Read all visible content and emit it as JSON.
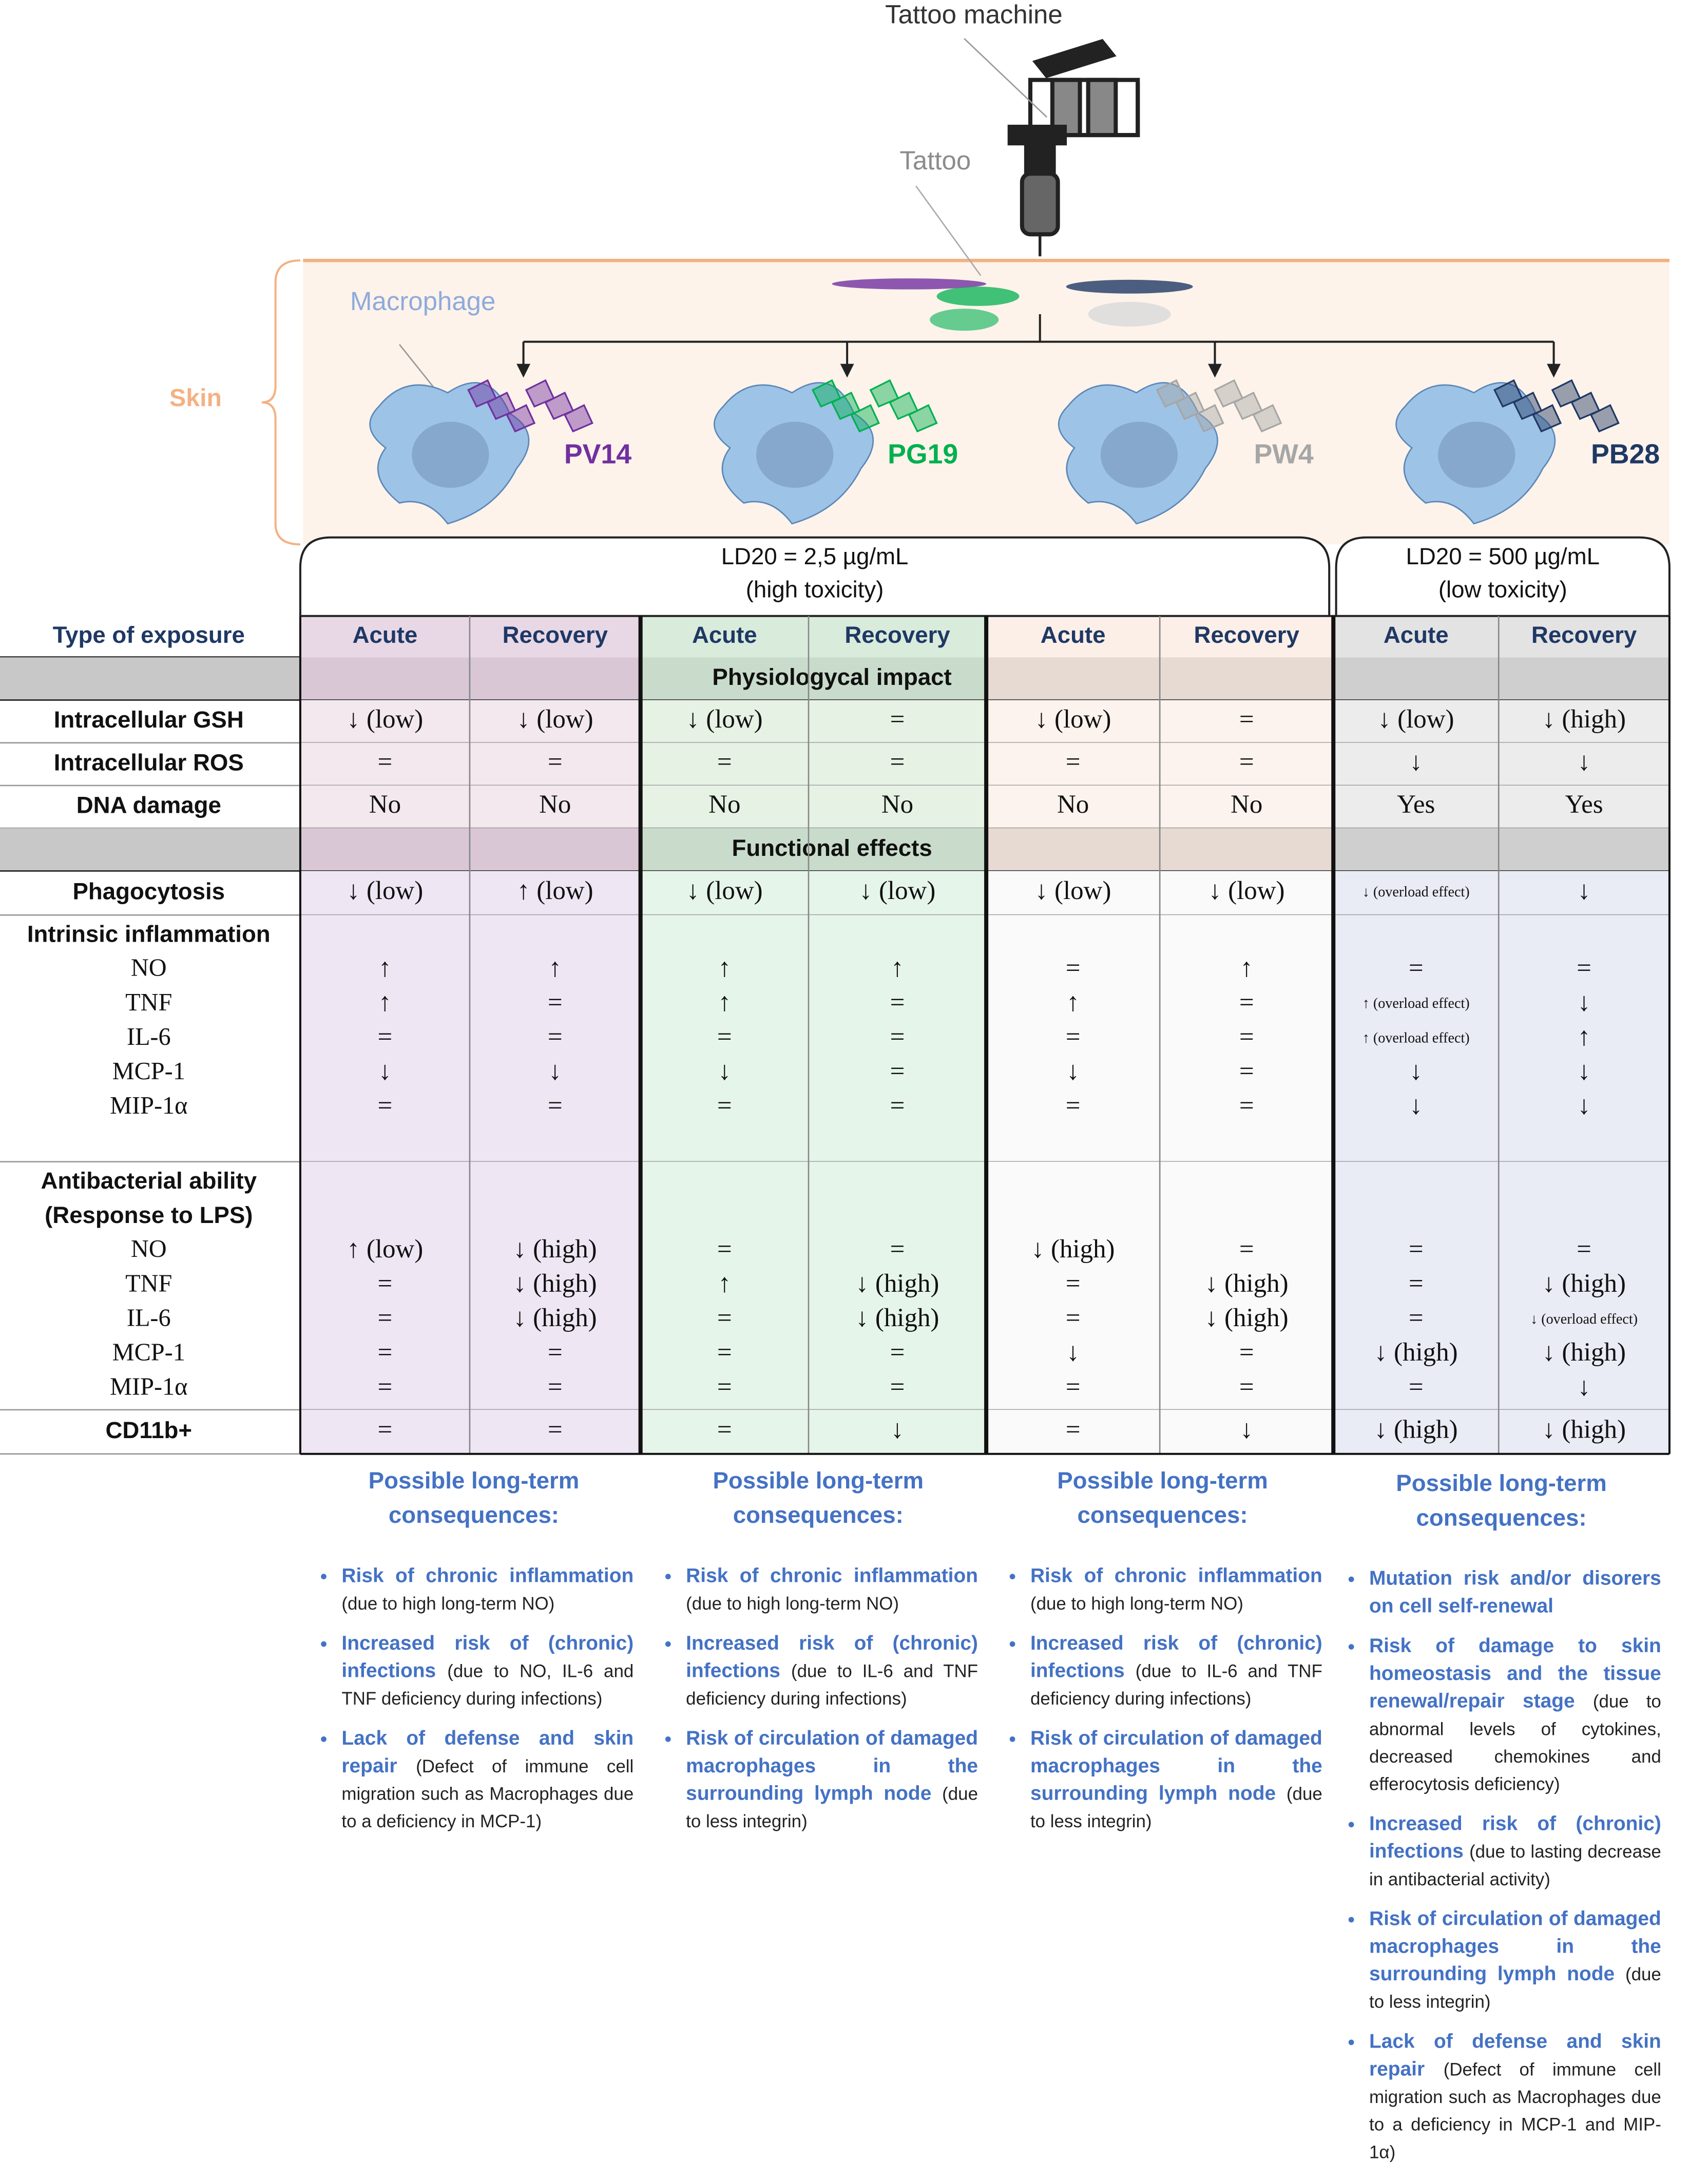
{
  "labels": {
    "machine": "Tattoo machine",
    "tattoo": "Tattoo",
    "skin": "Skin",
    "macrophage": "Macrophage"
  },
  "pigments": [
    {
      "name": "PV14",
      "color": "#7030a0"
    },
    {
      "name": "PG19",
      "color": "#00b050"
    },
    {
      "name": "PW4",
      "color": "#a6a6a6"
    },
    {
      "name": "PB28",
      "color": "#1f3864"
    }
  ],
  "toxicity": [
    {
      "line1": "LD20 = 2,5 µg/mL",
      "line2": "(high toxicity)"
    },
    {
      "line1": "LD20 = 500 µg/mL",
      "line2": "(low toxicity)"
    }
  ],
  "table": {
    "header": "Type of exposure",
    "columns": [
      "Acute",
      "Recovery",
      "Acute",
      "Recovery",
      "Acute",
      "Recovery",
      "Acute",
      "Recovery"
    ],
    "rows": [
      {
        "section": "Physiologycal impact"
      },
      {
        "label": "Intracellular GSH",
        "cells": [
          "↓ (low)",
          "↓ (low)",
          "↓ (low)",
          "=",
          "↓ (low)",
          "=",
          "↓ (low)",
          "↓ (high)"
        ]
      },
      {
        "label": "Intracellular ROS",
        "cells": [
          "=",
          "=",
          "=",
          "=",
          "=",
          "=",
          "↓",
          "↓"
        ]
      },
      {
        "label": "DNA damage",
        "cells": [
          "No",
          "No",
          "No",
          "No",
          "No",
          "No",
          "Yes",
          "Yes"
        ]
      },
      {
        "section": "Functional effects"
      },
      {
        "label": "Phagocytosis",
        "cells": [
          "↓ (low)",
          "↑ (low)",
          "↓ (low)",
          "↓ (low)",
          "↓ (low)",
          "↓ (low)",
          "↓ (overload effect)",
          "↓"
        ]
      },
      {
        "group": "Intrinsic inflammation",
        "items": [
          {
            "label": "NO",
            "cells": [
              "↑",
              "↑",
              "↑",
              "↑",
              "=",
              "↑",
              "=",
              "="
            ]
          },
          {
            "label": "TNF",
            "cells": [
              "↑",
              "=",
              "↑",
              "=",
              "↑",
              "=",
              "↑ (overload effect)",
              "↓"
            ]
          },
          {
            "label": "IL-6",
            "cells": [
              "=",
              "=",
              "=",
              "=",
              "=",
              "=",
              "↑ (overload effect)",
              "↑"
            ]
          },
          {
            "label": "MCP-1",
            "cells": [
              "↓",
              "↓",
              "↓",
              "=",
              "↓",
              "=",
              "↓",
              "↓"
            ]
          },
          {
            "label": "MIP-1α",
            "cells": [
              "=",
              "=",
              "=",
              "=",
              "=",
              "=",
              "↓",
              "↓"
            ]
          }
        ]
      },
      {
        "group": "Antibacterial ability",
        "note": "(Response to LPS)",
        "items": [
          {
            "label": "NO",
            "cells": [
              "↑ (low)",
              "↓ (high)",
              "=",
              "=",
              "↓ (high)",
              "=",
              "=",
              "="
            ]
          },
          {
            "label": "TNF",
            "cells": [
              "=",
              "↓ (high)",
              "↑",
              "↓ (high)",
              "=",
              "↓ (high)",
              "=",
              "↓ (high)"
            ]
          },
          {
            "label": "IL-6",
            "cells": [
              "=",
              "↓ (high)",
              "=",
              "↓ (high)",
              "=",
              "↓ (high)",
              "=",
              "↓ (overload effect)"
            ]
          },
          {
            "label": "MCP-1",
            "cells": [
              "=",
              "=",
              "=",
              "=",
              "↓",
              "=",
              "↓ (high)",
              "↓ (high)"
            ]
          },
          {
            "label": "MIP-1α",
            "cells": [
              "=",
              "=",
              "=",
              "=",
              "=",
              "=",
              "=",
              "↓"
            ]
          }
        ]
      },
      {
        "label": "CD11b+",
        "cells": [
          "=",
          "=",
          "=",
          "↓",
          "=",
          "↓",
          "↓ (high)",
          "↓ (high)"
        ]
      }
    ]
  },
  "consequences": [
    {
      "title": "Possible long-term consequences:",
      "items": [
        {
          "bold": "Risk of chronic inflammation",
          "text": "(due to high long-term NO)"
        },
        {
          "bold": "Increased risk of (chronic) infections",
          "text": "(due to NO, IL-6 and TNF deficiency during infections)"
        },
        {
          "bold": "Lack of defense and skin repair",
          "text": "(Defect of immune cell migration such as Macrophages due to a deficiency in MCP-1)"
        }
      ]
    },
    {
      "title": "Possible long-term consequences:",
      "items": [
        {
          "bold": "Risk of chronic inflammation",
          "text": "(due to high long-term NO)"
        },
        {
          "bold": "Increased risk of (chronic) infections",
          "text": "(due to IL-6 and TNF deficiency during infections)"
        },
        {
          "bold": "Risk of circulation of damaged macrophages in the surrounding lymph node",
          "text": "(due to less integrin)"
        }
      ]
    },
    {
      "title": "Possible long-term consequences:",
      "items": [
        {
          "bold": "Risk of chronic inflammation",
          "text": "(due to high long-term NO)"
        },
        {
          "bold": "Increased risk of (chronic) infections",
          "text": "(due to IL-6 and TNF deficiency during infections)"
        },
        {
          "bold": "Risk of circulation of damaged macrophages in the surrounding lymph node",
          "text": "(due to less integrin)"
        }
      ]
    },
    {
      "title": "Possible long-term consequences:",
      "items": [
        {
          "bold": "Mutation risk and/or disorers on cell self-renewal"
        },
        {
          "bold": "Risk of damage to skin homeostasis and the tissue renewal/repair stage",
          "text": "(due to abnormal levels of cytokines, decreased chemokines and efferocytosis deficiency)"
        },
        {
          "bold": "Increased risk of (chronic) infections",
          "text": "(due to lasting decrease in antibacterial activity)"
        },
        {
          "bold": "Risk of circulation of damaged macrophages in the surrounding lymph node",
          "text": "(due to less integrin)"
        },
        {
          "bold": "Lack of defense and skin repair",
          "text": "(Defect of immune cell migration such as Macrophages due to a deficiency in MCP-1 and MIP-1α)"
        }
      ]
    }
  ]
}
